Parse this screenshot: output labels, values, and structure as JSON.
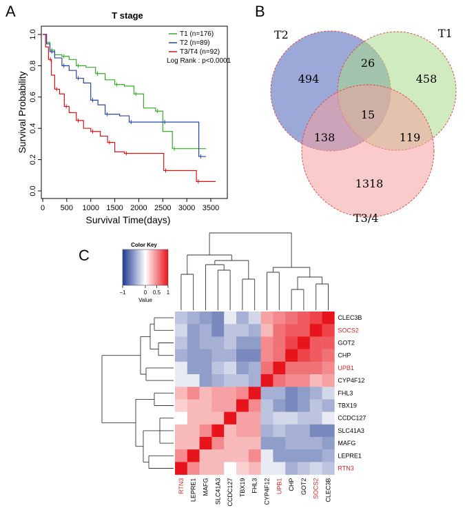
{
  "panels": {
    "a": {
      "label": "A",
      "chart_data": {
        "type": "line",
        "title": "T stage",
        "xlabel": "Survival Time(days)",
        "ylabel": "Survival Probability",
        "xlim": [
          0,
          3800
        ],
        "ylim": [
          0,
          1.0
        ],
        "xticks": [
          "0",
          "500",
          "1000",
          "1500",
          "2000",
          "2500",
          "3000",
          "3500"
        ],
        "yticks": [
          "0.0",
          "0.2",
          "0.4",
          "0.6",
          "0.8",
          "1.0"
        ],
        "legend": [
          "T1 (n=176)",
          "T2 (n=89)",
          "T3/T4 (n=92)"
        ],
        "annotation": "Log Rank : p<0.0001",
        "series": [
          {
            "name": "T1",
            "color": "#33aa22",
            "points": [
              [
                0,
                1.0
              ],
              [
                80,
                0.95
              ],
              [
                150,
                0.9
              ],
              [
                250,
                0.87
              ],
              [
                400,
                0.86
              ],
              [
                550,
                0.84
              ],
              [
                700,
                0.8
              ],
              [
                900,
                0.79
              ],
              [
                1100,
                0.75
              ],
              [
                1300,
                0.71
              ],
              [
                1500,
                0.68
              ],
              [
                1700,
                0.67
              ],
              [
                1900,
                0.62
              ],
              [
                2100,
                0.53
              ],
              [
                2350,
                0.51
              ],
              [
                2500,
                0.38
              ],
              [
                2700,
                0.27
              ],
              [
                3400,
                0.27
              ]
            ]
          },
          {
            "name": "T2",
            "color": "#2244aa",
            "points": [
              [
                0,
                1.0
              ],
              [
                80,
                0.94
              ],
              [
                150,
                0.89
              ],
              [
                250,
                0.85
              ],
              [
                400,
                0.8
              ],
              [
                550,
                0.77
              ],
              [
                700,
                0.72
              ],
              [
                850,
                0.69
              ],
              [
                1000,
                0.58
              ],
              [
                1150,
                0.55
              ],
              [
                1300,
                0.49
              ],
              [
                1600,
                0.48
              ],
              [
                1800,
                0.44
              ],
              [
                2200,
                0.44
              ],
              [
                2500,
                0.44
              ],
              [
                3200,
                0.44
              ],
              [
                3250,
                0.22
              ],
              [
                3400,
                0.22
              ]
            ]
          },
          {
            "name": "T3/T4",
            "color": "#dd1111",
            "points": [
              [
                0,
                1.0
              ],
              [
                60,
                0.92
              ],
              [
                120,
                0.84
              ],
              [
                180,
                0.74
              ],
              [
                250,
                0.65
              ],
              [
                350,
                0.62
              ],
              [
                450,
                0.54
              ],
              [
                550,
                0.5
              ],
              [
                700,
                0.45
              ],
              [
                850,
                0.4
              ],
              [
                1000,
                0.38
              ],
              [
                1200,
                0.35
              ],
              [
                1350,
                0.31
              ],
              [
                1500,
                0.25
              ],
              [
                1700,
                0.24
              ],
              [
                2500,
                0.24
              ],
              [
                2520,
                0.13
              ],
              [
                3000,
                0.13
              ],
              [
                3200,
                0.06
              ],
              [
                3600,
                0.06
              ]
            ]
          }
        ]
      }
    },
    "b": {
      "label": "B",
      "chart_data": {
        "type": "venn",
        "sets": [
          {
            "name": "T2",
            "color": "#4a63b8"
          },
          {
            "name": "T1",
            "color": "#a8db8a"
          },
          {
            "name": "T3/4",
            "color": "#f4a0a0"
          }
        ],
        "regions": {
          "T2_only": "494",
          "T1_only": "458",
          "T34_only": "1318",
          "T2_T1": "26",
          "T2_T34": "138",
          "T1_T34": "119",
          "all": "15"
        }
      }
    },
    "c": {
      "label": "C",
      "chart_data": {
        "type": "heatmap",
        "color_key": {
          "title": "Color Key",
          "label": "Value",
          "ticks": [
            "−1",
            "0",
            "0.5",
            "1"
          ],
          "range": [
            -1,
            1
          ]
        },
        "row_labels": [
          "CLEC3B",
          "SOCS2",
          "GOT2",
          "CHP",
          "UPB1",
          "CYP4F12",
          "FHL3",
          "TBX19",
          "CCDC127",
          "SLC41A3",
          "MAFG",
          "LEPRE1",
          "RTN3"
        ],
        "col_labels": [
          "RTN3",
          "LEPRE1",
          "MAFG",
          "SLC41A3",
          "CCDC127",
          "TBX19",
          "FHL3",
          "CYP4F12",
          "UPB1",
          "CHP",
          "GOT2",
          "SOCS2",
          "CLEC3B"
        ],
        "highlighted": [
          "SOCS2",
          "UPB1",
          "RTN3"
        ],
        "highlight_color": "#d62728",
        "values": [
          [
            -0.3,
            -0.4,
            -0.5,
            -0.6,
            -0.1,
            -0.4,
            -0.2,
            0.4,
            0.5,
            0.6,
            0.7,
            0.8,
            1.0
          ],
          [
            -0.2,
            -0.5,
            -0.4,
            -0.6,
            -0.3,
            -0.3,
            -0.4,
            0.3,
            0.6,
            0.7,
            0.7,
            1.0,
            0.8
          ],
          [
            -0.3,
            -0.5,
            -0.4,
            -0.4,
            -0.3,
            -0.5,
            -0.5,
            0.5,
            0.6,
            0.8,
            1.0,
            0.7,
            0.7
          ],
          [
            -0.4,
            -0.5,
            -0.5,
            -0.4,
            -0.4,
            -0.6,
            -0.6,
            0.5,
            0.6,
            1.0,
            0.8,
            0.7,
            0.6
          ],
          [
            -0.1,
            -0.5,
            -0.5,
            -0.3,
            -0.2,
            -0.5,
            -0.4,
            0.6,
            1.0,
            0.6,
            0.6,
            0.6,
            0.5
          ],
          [
            -0.1,
            -0.1,
            -0.5,
            -0.4,
            -0.3,
            -0.3,
            -0.4,
            1.0,
            0.6,
            0.5,
            0.5,
            0.3,
            0.4
          ],
          [
            0.3,
            0.5,
            0.3,
            0.4,
            0.4,
            0.5,
            1.0,
            -0.4,
            -0.4,
            -0.6,
            -0.5,
            -0.4,
            -0.2
          ],
          [
            0.2,
            0.3,
            0.3,
            0.4,
            0.4,
            1.0,
            0.5,
            -0.3,
            -0.5,
            -0.6,
            -0.5,
            -0.3,
            -0.4
          ],
          [
            0.0,
            0.3,
            0.3,
            0.3,
            1.0,
            0.4,
            0.4,
            -0.3,
            -0.2,
            -0.2,
            -0.3,
            -0.3,
            -0.1
          ],
          [
            0.3,
            0.3,
            0.5,
            1.0,
            0.3,
            0.4,
            0.4,
            -0.4,
            -0.3,
            -0.4,
            -0.4,
            -0.6,
            -0.6
          ],
          [
            0.3,
            0.3,
            1.0,
            0.5,
            0.3,
            0.3,
            0.3,
            -0.5,
            -0.5,
            -0.4,
            -0.4,
            -0.4,
            -0.5
          ],
          [
            0.5,
            1.0,
            0.3,
            0.3,
            0.3,
            0.3,
            0.5,
            -0.1,
            -0.5,
            -0.5,
            -0.5,
            -0.5,
            -0.4
          ],
          [
            1.0,
            0.5,
            0.3,
            0.3,
            0.0,
            0.2,
            0.3,
            -0.1,
            -0.1,
            -0.4,
            -0.3,
            -0.2,
            -0.3
          ]
        ]
      }
    }
  }
}
